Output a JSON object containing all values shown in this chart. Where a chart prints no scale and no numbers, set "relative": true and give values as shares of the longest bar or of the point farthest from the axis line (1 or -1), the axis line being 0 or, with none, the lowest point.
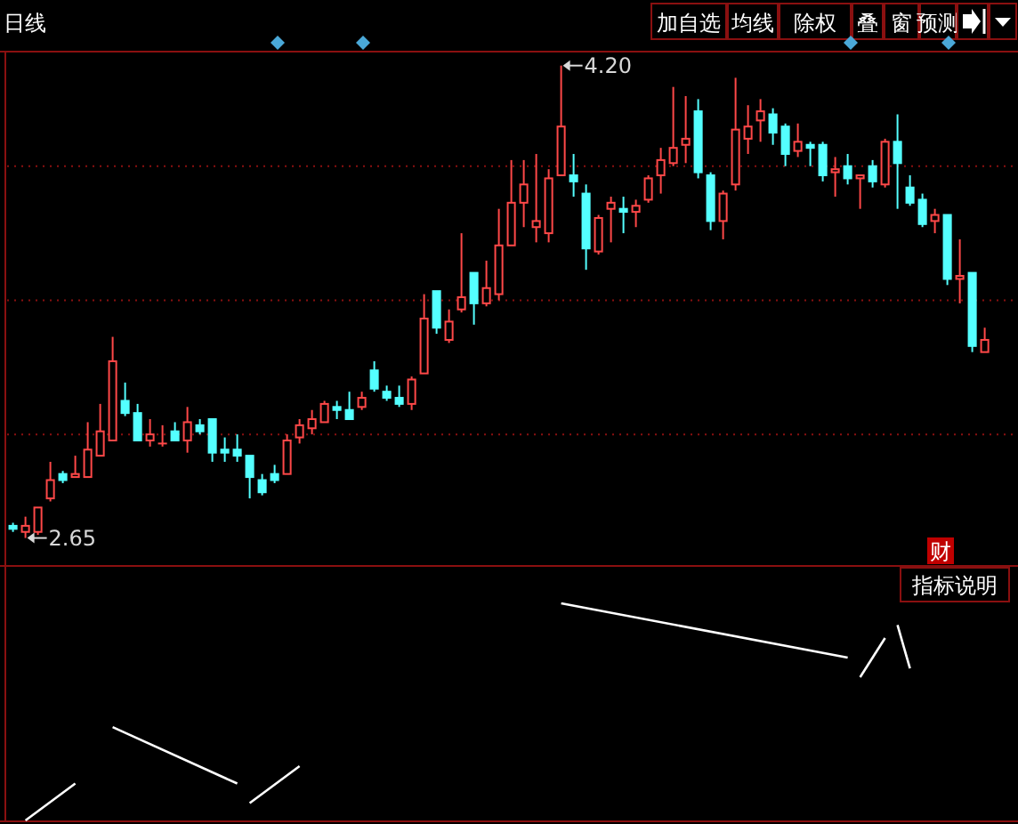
{
  "chart_data": [
    {
      "type": "candlestick",
      "categories": [
        null,
        null,
        null,
        null,
        null,
        null,
        null,
        null,
        null,
        null,
        null,
        null,
        null,
        null,
        null,
        null,
        null,
        null,
        null,
        null,
        null,
        null,
        null,
        null,
        null,
        null,
        null,
        null,
        null,
        null,
        null,
        null,
        null,
        null,
        null,
        null,
        null,
        null,
        null,
        null,
        null,
        null,
        null,
        null,
        null,
        null,
        null,
        null,
        null,
        null,
        null,
        null,
        null,
        null,
        null,
        null,
        null,
        null,
        null,
        null,
        null,
        null,
        null,
        null,
        null,
        null,
        null,
        null,
        null,
        null,
        null,
        null,
        null,
        null,
        null,
        null,
        null,
        null,
        null
      ],
      "ohlc": [
        [
          2.69,
          2.7,
          2.67,
          2.68
        ],
        [
          2.67,
          2.72,
          2.65,
          2.69
        ],
        [
          2.67,
          2.75,
          2.66,
          2.75
        ],
        [
          2.78,
          2.9,
          2.77,
          2.84
        ],
        [
          2.86,
          2.87,
          2.83,
          2.84
        ],
        [
          2.85,
          2.92,
          2.85,
          2.86
        ],
        [
          2.85,
          3.03,
          2.85,
          2.94
        ],
        [
          2.92,
          3.09,
          2.92,
          3.0
        ],
        [
          2.97,
          3.31,
          2.97,
          3.23
        ],
        [
          3.1,
          3.16,
          3.05,
          3.06
        ],
        [
          3.06,
          3.09,
          2.97,
          2.97
        ],
        [
          2.97,
          3.04,
          2.95,
          2.99
        ],
        [
          2.96,
          3.02,
          2.95,
          2.96
        ],
        [
          3.0,
          3.03,
          2.97,
          2.97
        ],
        [
          2.97,
          3.08,
          2.93,
          3.03
        ],
        [
          3.02,
          3.04,
          2.99,
          3.0
        ],
        [
          3.04,
          3.04,
          2.9,
          2.93
        ],
        [
          2.94,
          2.98,
          2.9,
          2.93
        ],
        [
          2.94,
          2.99,
          2.9,
          2.92
        ],
        [
          2.92,
          2.92,
          2.78,
          2.85
        ],
        [
          2.84,
          2.86,
          2.79,
          2.8
        ],
        [
          2.86,
          2.89,
          2.83,
          2.84
        ],
        [
          2.86,
          2.99,
          2.86,
          2.97
        ],
        [
          2.98,
          3.04,
          2.96,
          3.02
        ],
        [
          3.01,
          3.07,
          2.99,
          3.04
        ],
        [
          3.03,
          3.1,
          3.03,
          3.09
        ],
        [
          3.08,
          3.1,
          3.04,
          3.07
        ],
        [
          3.07,
          3.13,
          3.04,
          3.04
        ],
        [
          3.08,
          3.13,
          3.07,
          3.11
        ],
        [
          3.2,
          3.23,
          3.13,
          3.14
        ],
        [
          3.13,
          3.15,
          3.1,
          3.11
        ],
        [
          3.11,
          3.15,
          3.08,
          3.09
        ],
        [
          3.09,
          3.18,
          3.07,
          3.17
        ],
        [
          3.19,
          3.45,
          3.19,
          3.37
        ],
        [
          3.46,
          3.46,
          3.32,
          3.34
        ],
        [
          3.3,
          3.4,
          3.29,
          3.36
        ],
        [
          3.4,
          3.65,
          3.39,
          3.44
        ],
        [
          3.52,
          3.52,
          3.35,
          3.42
        ],
        [
          3.42,
          3.56,
          3.41,
          3.47
        ],
        [
          3.45,
          3.73,
          3.43,
          3.61
        ],
        [
          3.61,
          3.89,
          3.61,
          3.75
        ],
        [
          3.75,
          3.89,
          3.67,
          3.81
        ],
        [
          3.67,
          3.91,
          3.62,
          3.69
        ],
        [
          3.65,
          3.86,
          3.62,
          3.83
        ],
        [
          3.84,
          4.2,
          3.84,
          4.0
        ],
        [
          3.84,
          3.91,
          3.77,
          3.82
        ],
        [
          3.78,
          3.81,
          3.53,
          3.6
        ],
        [
          3.59,
          3.71,
          3.58,
          3.7
        ],
        [
          3.73,
          3.77,
          3.62,
          3.75
        ],
        [
          3.73,
          3.77,
          3.65,
          3.72
        ],
        [
          3.72,
          3.76,
          3.67,
          3.74
        ],
        [
          3.76,
          3.84,
          3.75,
          3.83
        ],
        [
          3.84,
          3.93,
          3.78,
          3.89
        ],
        [
          3.88,
          4.13,
          3.87,
          3.93
        ],
        [
          3.94,
          4.1,
          3.88,
          3.96
        ],
        [
          4.05,
          4.09,
          3.83,
          3.85
        ],
        [
          3.84,
          3.85,
          3.66,
          3.69
        ],
        [
          3.69,
          3.79,
          3.63,
          3.78
        ],
        [
          3.81,
          4.16,
          3.79,
          3.99
        ],
        [
          3.96,
          4.07,
          3.91,
          4.0
        ],
        [
          4.02,
          4.09,
          3.95,
          4.05
        ],
        [
          4.04,
          4.06,
          3.94,
          3.98
        ],
        [
          4.0,
          4.01,
          3.87,
          3.91
        ],
        [
          3.92,
          4.01,
          3.9,
          3.95
        ],
        [
          3.94,
          3.95,
          3.87,
          3.93
        ],
        [
          3.94,
          3.95,
          3.82,
          3.84
        ],
        [
          3.85,
          3.9,
          3.77,
          3.86
        ],
        [
          3.87,
          3.91,
          3.81,
          3.83
        ],
        [
          3.83,
          3.84,
          3.73,
          3.84
        ],
        [
          3.87,
          3.89,
          3.8,
          3.82
        ],
        [
          3.81,
          3.96,
          3.8,
          3.95
        ],
        [
          3.95,
          4.04,
          3.73,
          3.88
        ],
        [
          3.8,
          3.84,
          3.74,
          3.75
        ],
        [
          3.76,
          3.78,
          3.67,
          3.68
        ],
        [
          3.69,
          3.73,
          3.65,
          3.71
        ],
        [
          3.71,
          3.71,
          3.48,
          3.5
        ],
        [
          3.5,
          3.63,
          3.42,
          3.51
        ],
        [
          3.52,
          3.52,
          3.26,
          3.28
        ],
        [
          3.26,
          3.34,
          3.26,
          3.3
        ]
      ],
      "ylim": [
        2.57,
        4.24
      ],
      "yticks": [
        {
          "value": 2.99,
          "label": null
        },
        {
          "value": 3.43,
          "label": null
        },
        {
          "value": 3.87,
          "label": null
        }
      ],
      "grid": "y",
      "annotations": [
        "4.20",
        "2.65",
        "日线",
        "加自选",
        "均线",
        "除权",
        "叠",
        "窗",
        "预测",
        "财",
        "指标说明"
      ]
    },
    {
      "type": "line",
      "relative": true,
      "categories": [
        null,
        null,
        null,
        null,
        null,
        null,
        null,
        null,
        null,
        null,
        null,
        null,
        null,
        null,
        null,
        null,
        null,
        null,
        null,
        null,
        null,
        null,
        null,
        null,
        null,
        null,
        null,
        null,
        null,
        null,
        null,
        null,
        null,
        null,
        null,
        null,
        null,
        null,
        null,
        null,
        null,
        null,
        null,
        null,
        null,
        null,
        null,
        null,
        null,
        null,
        null,
        null,
        null,
        null,
        null,
        null,
        null,
        null,
        null,
        null,
        null,
        null,
        null,
        null,
        null,
        null,
        null,
        null,
        null,
        null,
        null,
        null,
        null,
        null,
        null,
        null,
        null,
        null,
        null
      ],
      "series": [
        {
          "color": "#ffffff",
          "values": [
            null,
            0,
            null,
            null,
            null,
            0.17,
            null,
            null,
            null,
            null,
            null,
            null,
            null,
            null,
            null,
            null,
            null,
            null,
            null,
            null,
            null,
            null,
            null,
            null,
            null,
            null,
            null,
            null,
            null,
            null,
            null,
            null,
            null,
            null,
            null,
            null,
            null,
            null,
            null,
            null,
            null,
            null,
            null,
            null,
            null,
            null,
            null,
            null,
            null,
            null,
            null,
            null,
            null,
            null,
            null,
            null,
            null,
            null,
            null,
            null,
            null,
            null,
            null,
            null,
            null,
            null,
            null,
            null,
            null,
            null,
            null,
            null,
            null,
            null,
            null,
            null,
            null,
            null,
            null
          ]
        },
        {
          "color": "#ffffff",
          "values": [
            null,
            null,
            null,
            null,
            null,
            null,
            null,
            null,
            0.43,
            null,
            null,
            null,
            null,
            null,
            null,
            null,
            null,
            null,
            0.17,
            null,
            null,
            null,
            null,
            null,
            null,
            null,
            null,
            null,
            null,
            null,
            null,
            null,
            null,
            null,
            null,
            null,
            null,
            null,
            null,
            null,
            null,
            null,
            null,
            null,
            null,
            null,
            null,
            null,
            null,
            null,
            null,
            null,
            null,
            null,
            null,
            null,
            null,
            null,
            null,
            null,
            null,
            null,
            null,
            null,
            null,
            null,
            null,
            null,
            null,
            null,
            null,
            null,
            null,
            null,
            null,
            null,
            null,
            null,
            null
          ]
        },
        {
          "color": "#ffffff",
          "values": [
            null,
            null,
            null,
            null,
            null,
            null,
            null,
            null,
            null,
            null,
            null,
            null,
            null,
            null,
            null,
            null,
            null,
            null,
            null,
            0.08,
            null,
            null,
            null,
            0.25,
            null,
            null,
            null,
            null,
            null,
            null,
            null,
            null,
            null,
            null,
            null,
            null,
            null,
            null,
            null,
            null,
            null,
            null,
            null,
            null,
            null,
            null,
            null,
            null,
            null,
            null,
            null,
            null,
            null,
            null,
            null,
            null,
            null,
            null,
            null,
            null,
            null,
            null,
            null,
            null,
            null,
            null,
            null,
            null,
            null,
            null,
            null,
            null,
            null,
            null,
            null,
            null,
            null,
            null,
            null
          ]
        },
        {
          "color": "#ffffff",
          "values": [
            null,
            null,
            null,
            null,
            null,
            null,
            null,
            null,
            null,
            null,
            null,
            null,
            null,
            null,
            null,
            null,
            null,
            null,
            null,
            null,
            null,
            null,
            null,
            null,
            null,
            null,
            null,
            null,
            null,
            null,
            null,
            null,
            null,
            null,
            null,
            null,
            null,
            null,
            null,
            null,
            null,
            null,
            null,
            null,
            1,
            null,
            null,
            null,
            null,
            null,
            null,
            null,
            null,
            null,
            null,
            null,
            null,
            null,
            null,
            null,
            null,
            null,
            null,
            null,
            null,
            null,
            null,
            0.75,
            null,
            null,
            null,
            null,
            null,
            null,
            null,
            null,
            null,
            null,
            null
          ]
        },
        {
          "color": "#ffffff",
          "values": [
            null,
            null,
            null,
            null,
            null,
            null,
            null,
            null,
            null,
            null,
            null,
            null,
            null,
            null,
            null,
            null,
            null,
            null,
            null,
            null,
            null,
            null,
            null,
            null,
            null,
            null,
            null,
            null,
            null,
            null,
            null,
            null,
            null,
            null,
            null,
            null,
            null,
            null,
            null,
            null,
            null,
            null,
            null,
            null,
            null,
            null,
            null,
            null,
            null,
            null,
            null,
            null,
            null,
            null,
            null,
            null,
            null,
            null,
            null,
            null,
            null,
            null,
            null,
            null,
            null,
            null,
            null,
            null,
            0.66,
            null,
            0.84,
            null,
            null,
            null,
            null,
            null,
            null,
            null,
            null
          ]
        },
        {
          "color": "#ffffff",
          "values": [
            null,
            null,
            null,
            null,
            null,
            null,
            null,
            null,
            null,
            null,
            null,
            null,
            null,
            null,
            null,
            null,
            null,
            null,
            null,
            null,
            null,
            null,
            null,
            null,
            null,
            null,
            null,
            null,
            null,
            null,
            null,
            null,
            null,
            null,
            null,
            null,
            null,
            null,
            null,
            null,
            null,
            null,
            null,
            null,
            null,
            null,
            null,
            null,
            null,
            null,
            null,
            null,
            null,
            null,
            null,
            null,
            null,
            null,
            null,
            null,
            null,
            null,
            null,
            null,
            null,
            null,
            null,
            null,
            null,
            null,
            null,
            0.9,
            0.7,
            null,
            null,
            null,
            null,
            null,
            null
          ]
        }
      ]
    }
  ]
}
